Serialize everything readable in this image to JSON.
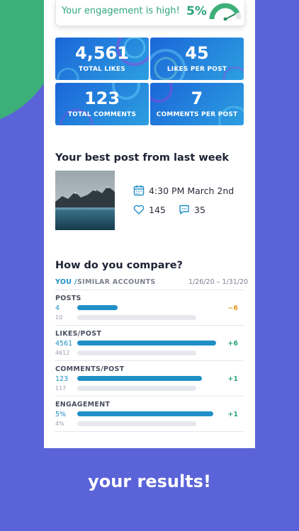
{
  "colors": {
    "accent": "#1f8fc6",
    "green": "#2fa57a",
    "orange": "#e39a1b",
    "background": "#5a63d8"
  },
  "engagement": {
    "text": "Your engagement is high!",
    "percent": "5%",
    "gauge_level": 0.85
  },
  "stats": [
    {
      "value": "4,561",
      "label": "TOTAL LIKES"
    },
    {
      "value": "45",
      "label": "LIKES PER POST"
    },
    {
      "value": "123",
      "label": "TOTAL COMMENTS"
    },
    {
      "value": "7",
      "label": "COMMENTS PER POST"
    }
  ],
  "best_post": {
    "title": "Your best post from last week",
    "datetime": "4:30 PM March 2nd",
    "likes": "145",
    "comments": "35",
    "icons": [
      "calendar-icon",
      "heart-icon",
      "comment-icon"
    ]
  },
  "compare": {
    "title": "How do you compare?",
    "you_label": "YOU /",
    "similar_label": "SIMILAR ACCOUNTS",
    "date_range": "1/26/20 – 1/31/20",
    "metrics": [
      {
        "label": "POSTS",
        "you": "4",
        "similar": "10",
        "delta": "−6",
        "delta_color": "#e39a1b",
        "you_fill": 0.29
      },
      {
        "label": "LIKES/POST",
        "you": "4561",
        "similar": "4612",
        "delta": "+6",
        "delta_color": "#2fa57a",
        "you_fill": 1.0
      },
      {
        "label": "COMMENTS/POST",
        "you": "123",
        "similar": "117",
        "delta": "+1",
        "delta_color": "#2fa57a",
        "you_fill": 0.9
      },
      {
        "label": "ENGAGEMENT",
        "you": "5%",
        "similar": "4%",
        "delta": "+1",
        "delta_color": "#2fa57a",
        "you_fill": 0.98
      }
    ]
  },
  "footer": {
    "text": "your results!"
  }
}
